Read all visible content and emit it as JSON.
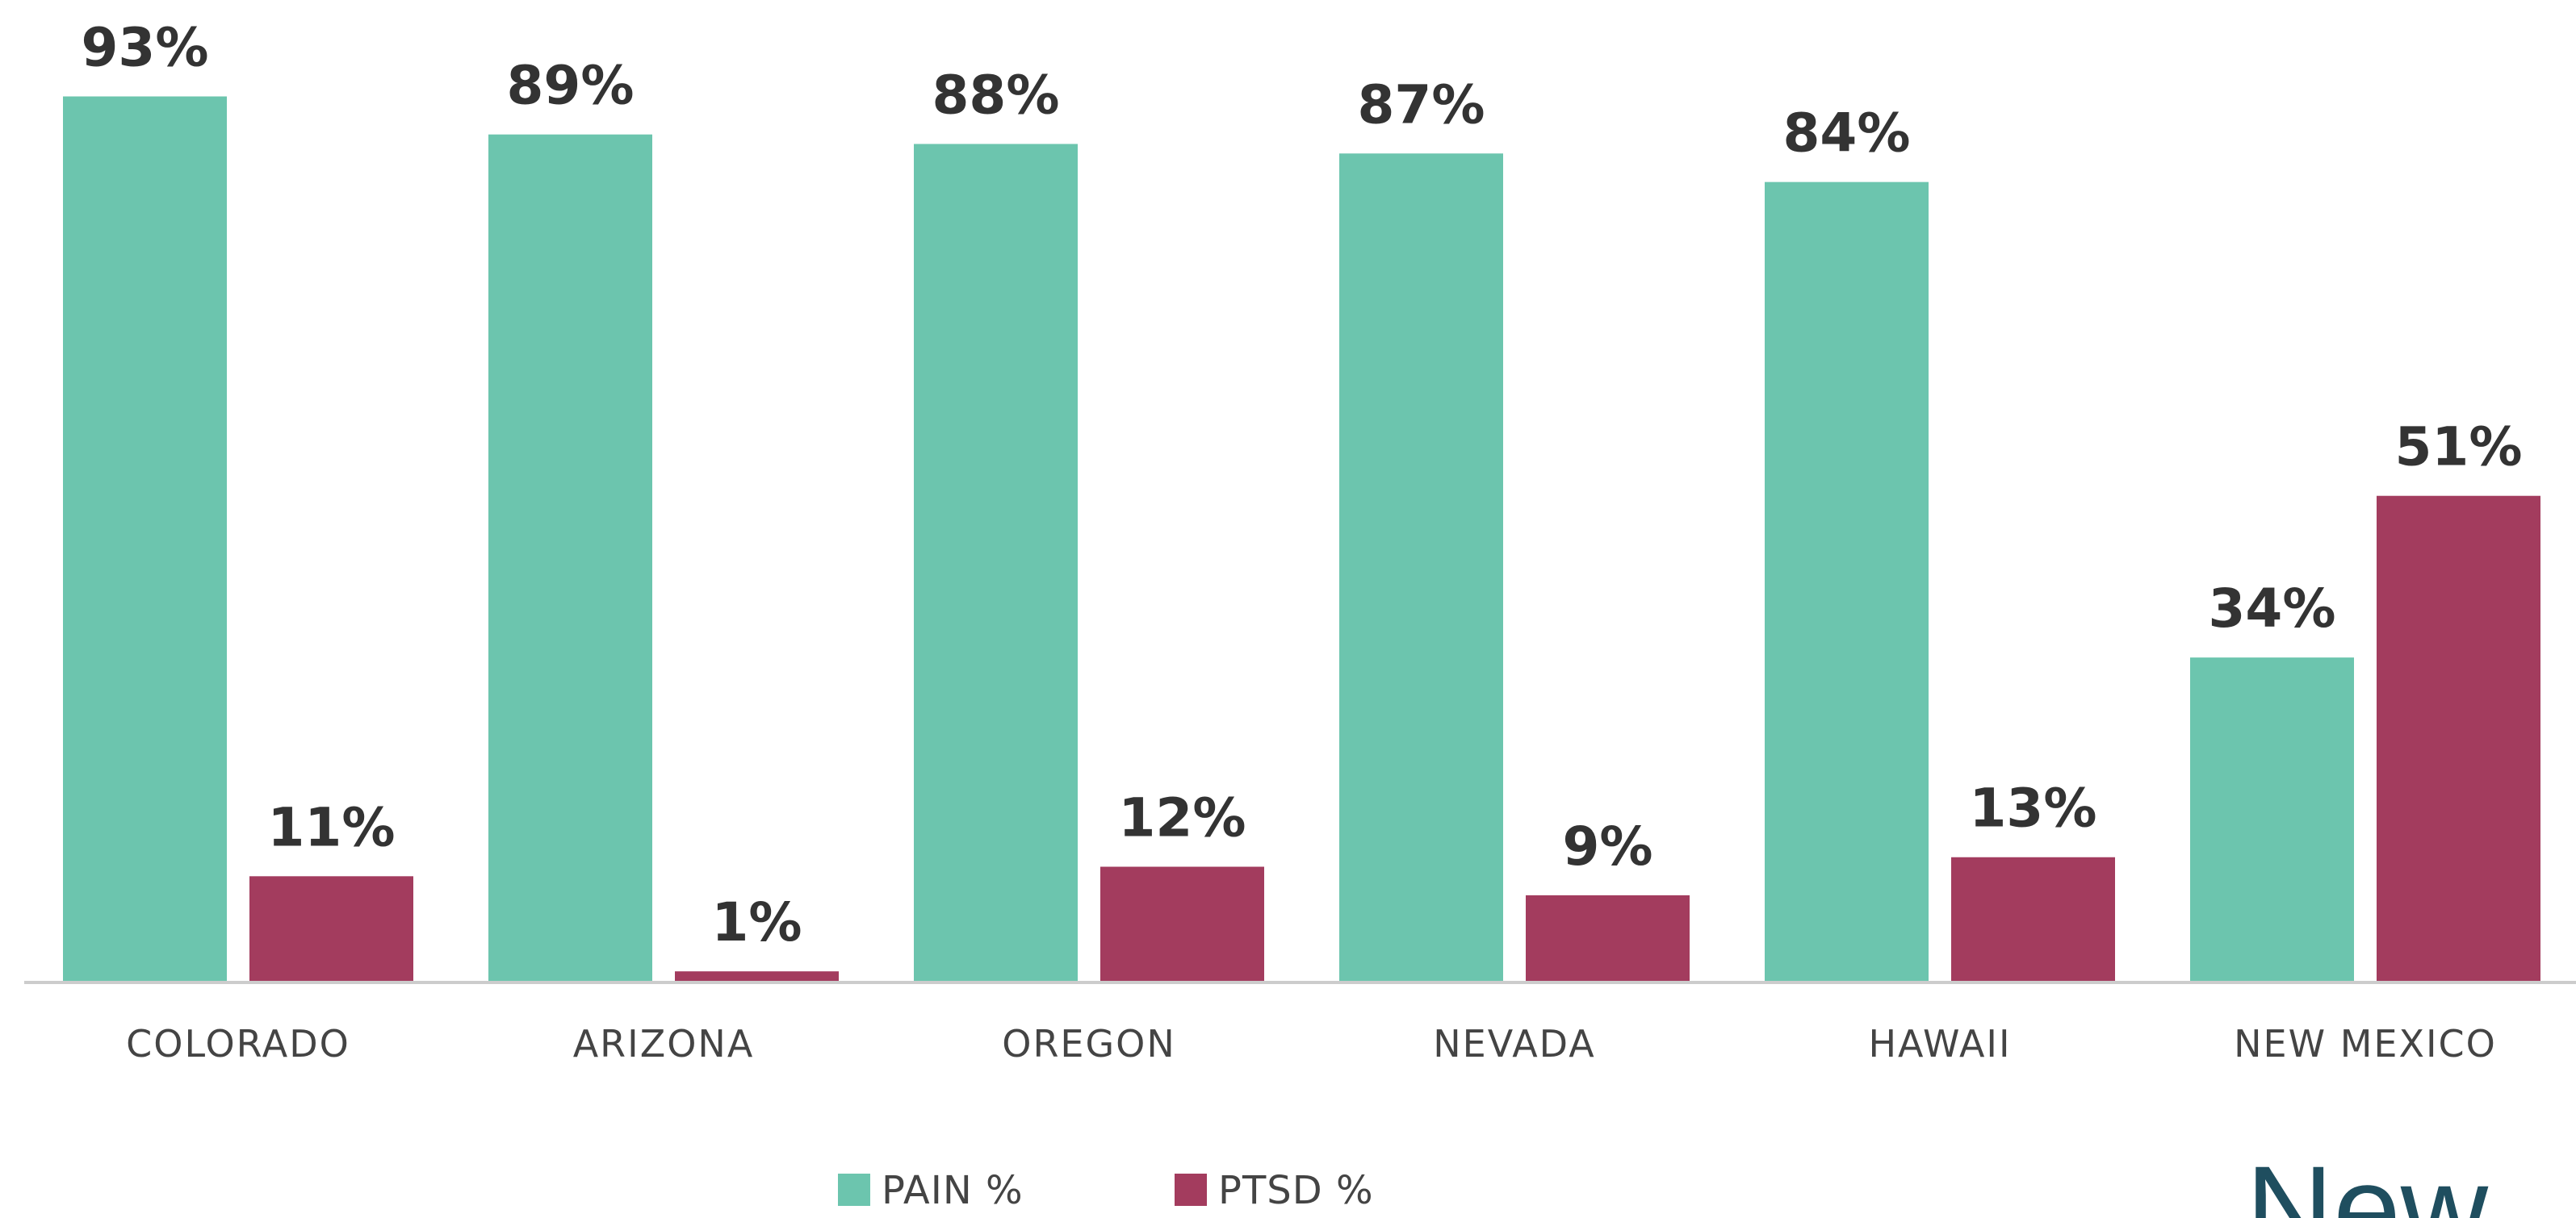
{
  "chart_data": {
    "type": "bar",
    "categories": [
      "COLORADO",
      "ARIZONA",
      "OREGON",
      "NEVADA",
      "HAWAII",
      "NEW MEXICO"
    ],
    "series": [
      {
        "name": "PAIN %",
        "color": "#6cc5ae",
        "values": [
          93,
          89,
          88,
          87,
          84,
          34
        ],
        "value_labels": [
          "93%",
          "89%",
          "88%",
          "87%",
          "84%",
          "34%"
        ]
      },
      {
        "name": "PTSD %",
        "color": "#a33c5e",
        "values": [
          11,
          1,
          12,
          9,
          13,
          51
        ],
        "value_labels": [
          "11%",
          "1%",
          "12%",
          "9%",
          "13%",
          "51%"
        ]
      }
    ],
    "ylim": [
      0,
      100
    ],
    "legend": "bottom",
    "logo": "New"
  }
}
